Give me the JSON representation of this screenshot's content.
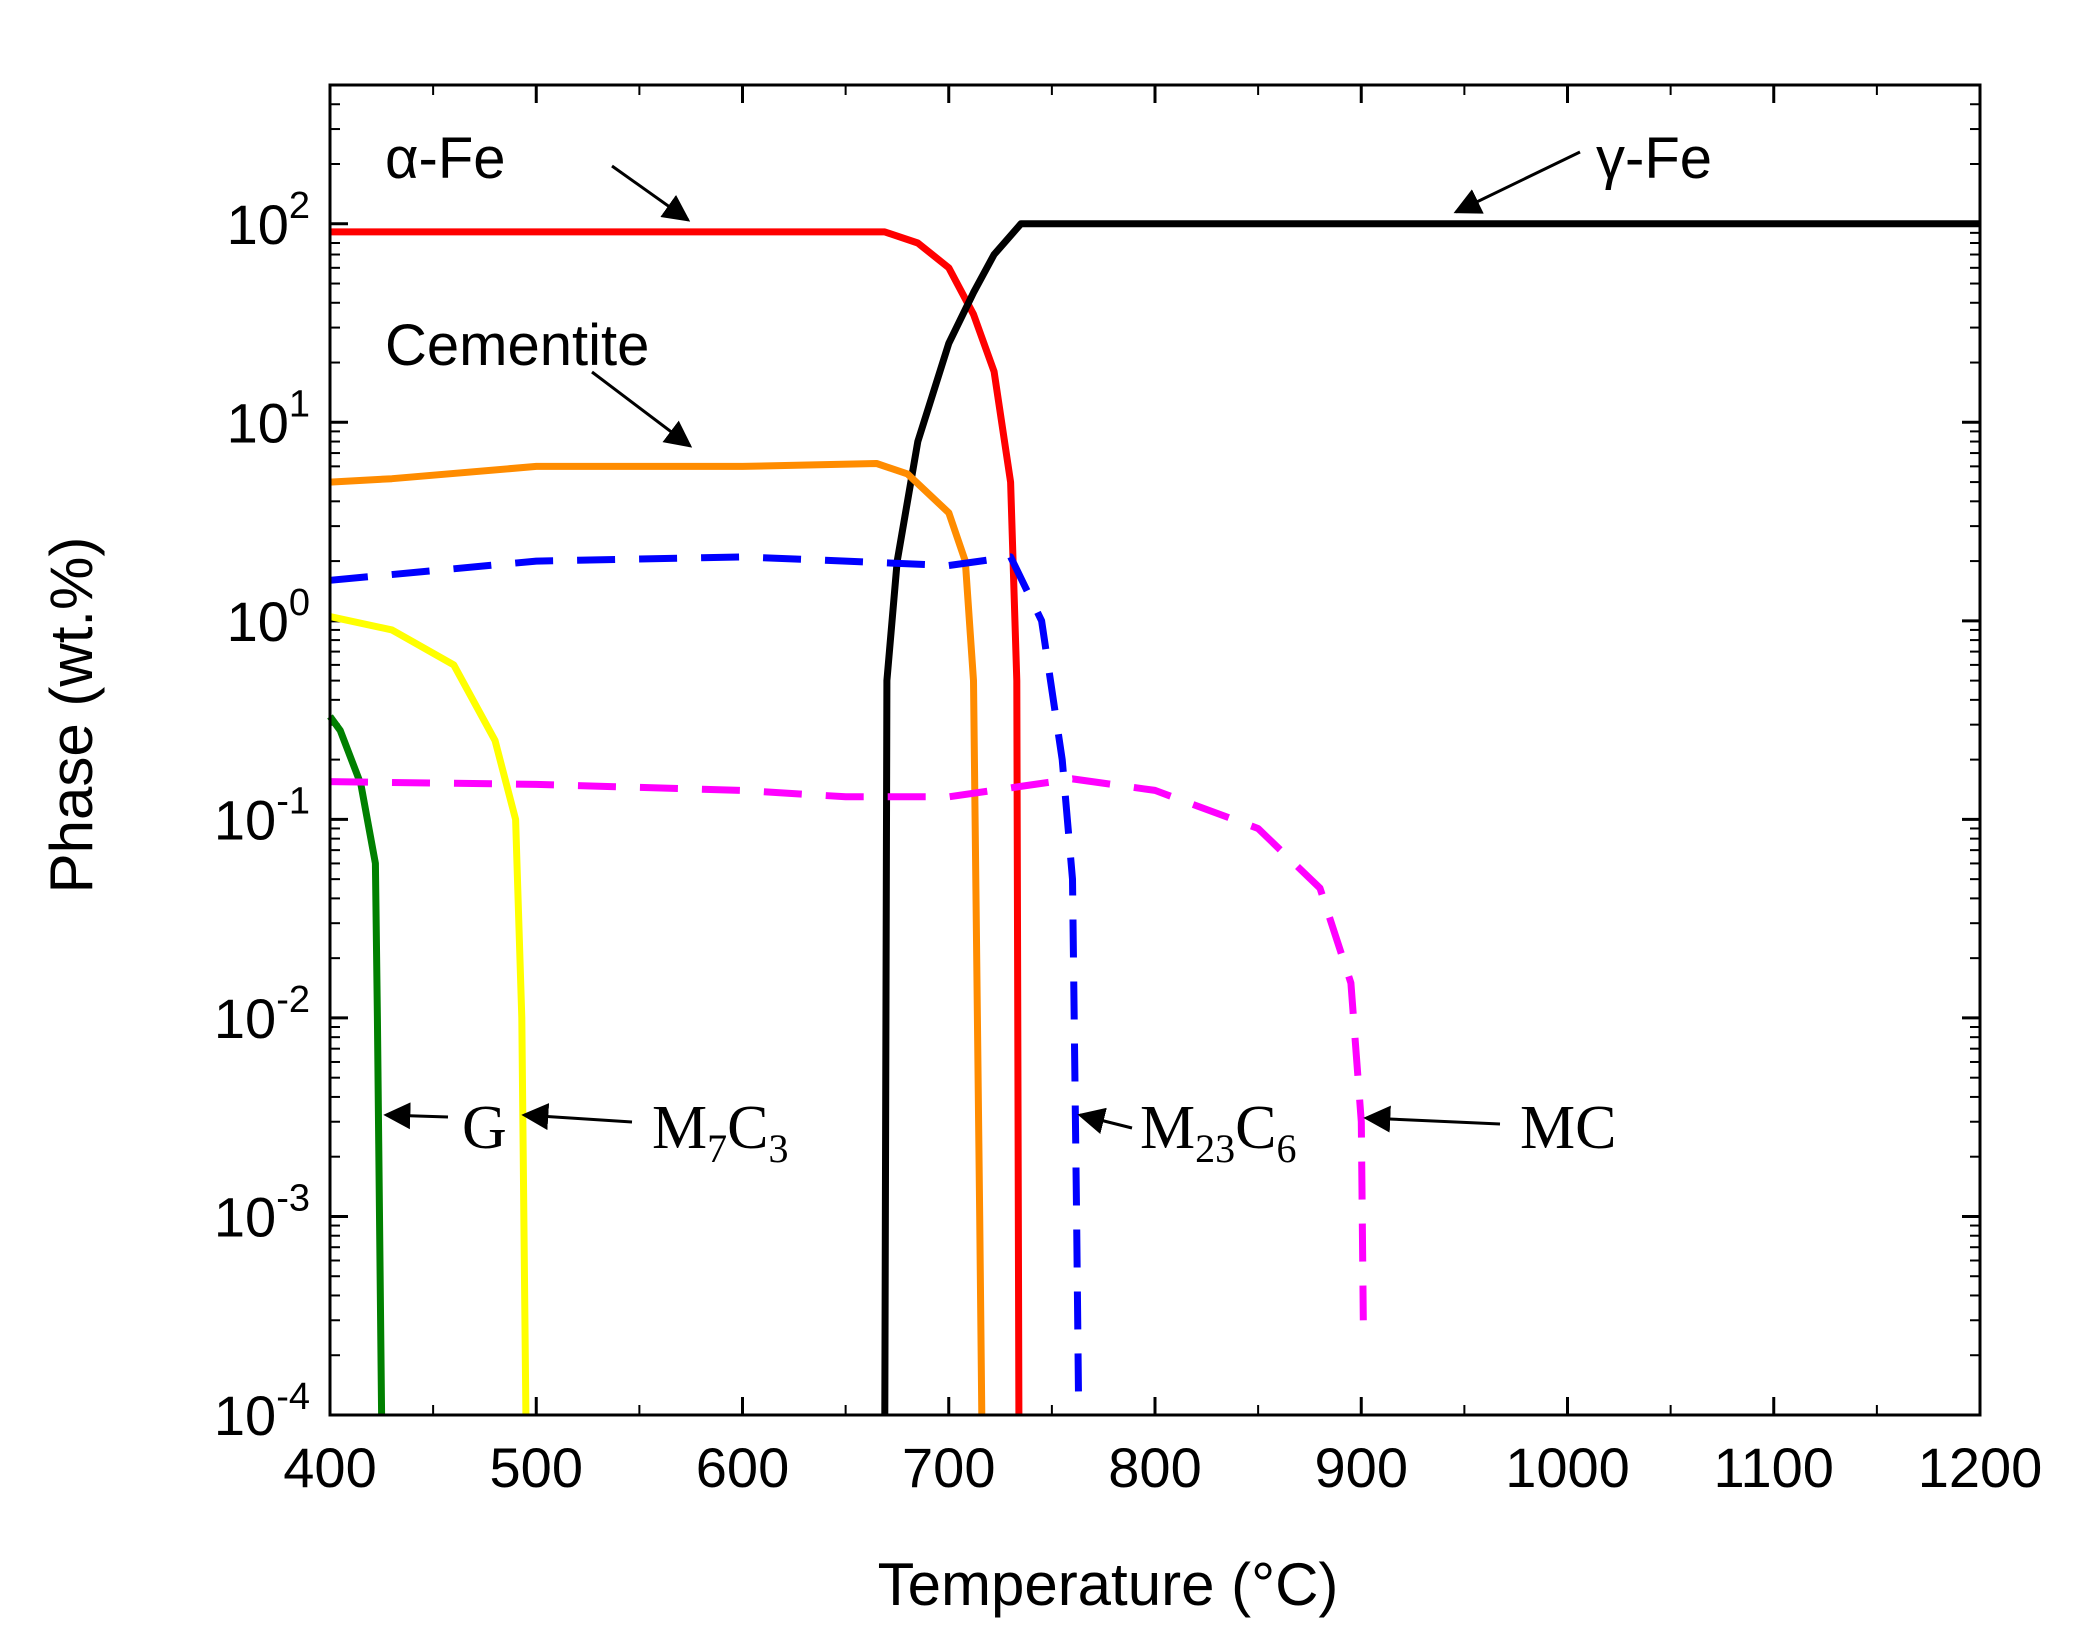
{
  "chart_data": {
    "type": "line",
    "title": "",
    "xlabel": "Temperature (°C)",
    "ylabel": "Phase (wt.%)",
    "xlim": [
      400,
      1200
    ],
    "ylim": [
      0.0001,
      500
    ],
    "yscale": "log",
    "grid": false,
    "x_ticks": [
      {
        "value": 400,
        "label": "400"
      },
      {
        "value": 500,
        "label": "500"
      },
      {
        "value": 600,
        "label": "600"
      },
      {
        "value": 700,
        "label": "700"
      },
      {
        "value": 800,
        "label": "800"
      },
      {
        "value": 900,
        "label": "900"
      },
      {
        "value": 1000,
        "label": "1000"
      },
      {
        "value": 1100,
        "label": "1100"
      },
      {
        "value": 1200,
        "label": "1200"
      }
    ],
    "y_ticks": [
      {
        "value": 100,
        "base": "10",
        "exp": "2"
      },
      {
        "value": 10,
        "base": "10",
        "exp": "1"
      },
      {
        "value": 1,
        "base": "10",
        "exp": "0"
      },
      {
        "value": 0.1,
        "base": "10",
        "exp": "-1"
      },
      {
        "value": 0.01,
        "base": "10",
        "exp": "-2"
      },
      {
        "value": 0.001,
        "base": "10",
        "exp": "-3"
      },
      {
        "value": 0.0001,
        "base": "10",
        "exp": "-4"
      }
    ],
    "series": [
      {
        "name": "α-Fe",
        "color": "#ff0000",
        "dash": "solid",
        "x": [
          400,
          600,
          669,
          685,
          700,
          712,
          722,
          730,
          733,
          734
        ],
        "y": [
          91,
          91,
          91,
          80,
          60,
          35,
          18,
          5,
          0.5,
          0.0001
        ]
      },
      {
        "name": "γ-Fe",
        "color": "#000000",
        "dash": "solid",
        "x": [
          669,
          670,
          675,
          685,
          700,
          712,
          722,
          735,
          800,
          1200
        ],
        "y": [
          0.0001,
          0.5,
          2,
          8,
          25,
          45,
          70,
          100,
          100,
          100
        ]
      },
      {
        "name": "Cementite",
        "color": "#ff8c00",
        "dash": "solid",
        "x": [
          400,
          430,
          500,
          600,
          665,
          680,
          700,
          708,
          712,
          715,
          716
        ],
        "y": [
          5,
          5.2,
          6,
          6,
          6.2,
          5.5,
          3.5,
          2,
          0.5,
          0.001,
          0.0001
        ]
      },
      {
        "name": "M7C3",
        "color": "#ffff00",
        "dash": "solid",
        "x": [
          400,
          430,
          460,
          480,
          490,
          493,
          495
        ],
        "y": [
          1.05,
          0.9,
          0.6,
          0.25,
          0.1,
          0.01,
          0.0001
        ]
      },
      {
        "name": "G",
        "color": "#008000",
        "dash": "solid",
        "x": [
          400,
          405,
          415,
          422,
          423,
          425
        ],
        "y": [
          0.33,
          0.28,
          0.15,
          0.06,
          0.01,
          0.0001
        ]
      },
      {
        "name": "M23C6",
        "color": "#0000ff",
        "dash": "dashed",
        "x": [
          400,
          500,
          600,
          650,
          700,
          730,
          745,
          755,
          760,
          762,
          763
        ],
        "y": [
          1.6,
          2.0,
          2.1,
          2.0,
          1.9,
          2.1,
          1.0,
          0.2,
          0.05,
          0.001,
          0.0001
        ]
      },
      {
        "name": "MC",
        "color": "#ff00ff",
        "dash": "dashed",
        "x": [
          400,
          500,
          600,
          650,
          700,
          760,
          800,
          850,
          880,
          895,
          900,
          901
        ],
        "y": [
          0.155,
          0.15,
          0.14,
          0.13,
          0.13,
          0.16,
          0.14,
          0.09,
          0.045,
          0.015,
          0.003,
          0.0003
        ]
      }
    ],
    "annotations": [
      {
        "text": "α-Fe",
        "style": "sans"
      },
      {
        "text": "γ-Fe",
        "style": "sans"
      },
      {
        "text": "Cementite",
        "style": "sans"
      },
      {
        "text": "G",
        "style": "serif"
      },
      {
        "main": "M",
        "sub1": "7",
        "mid": "C",
        "sub2": "3",
        "style": "serif"
      },
      {
        "main": "M",
        "sub1": "23",
        "mid": "C",
        "sub2": "6",
        "style": "serif"
      },
      {
        "text": "MC",
        "style": "serif"
      }
    ]
  }
}
